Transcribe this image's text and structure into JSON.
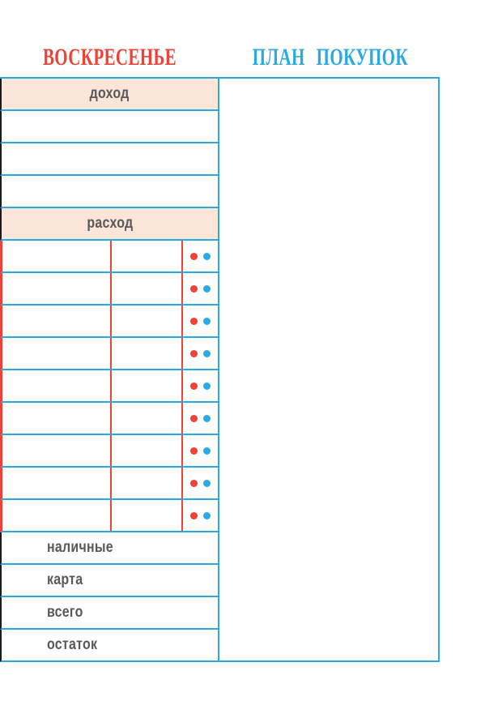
{
  "titles": {
    "day": "ВОСКРЕСЕНЬЕ",
    "shopping_plan": "ПЛАН ПОКУПОК"
  },
  "budget_table": {
    "income_header": "доход",
    "income_row_count": 3,
    "expense_header": "расход",
    "expense_row_count": 9,
    "expense_marker_dots": [
      "red-dot-marker",
      "cyan-dot-marker"
    ],
    "summary_rows": [
      {
        "label": "наличные"
      },
      {
        "label": "карта"
      },
      {
        "label": "всего"
      },
      {
        "label": "остаток"
      }
    ]
  },
  "colors": {
    "cyan": "#29abe2",
    "red": "#ef4136",
    "header_fill": "#fce5d9",
    "table_edge_black": "#1b1b1b",
    "label_text": "#58585a"
  }
}
